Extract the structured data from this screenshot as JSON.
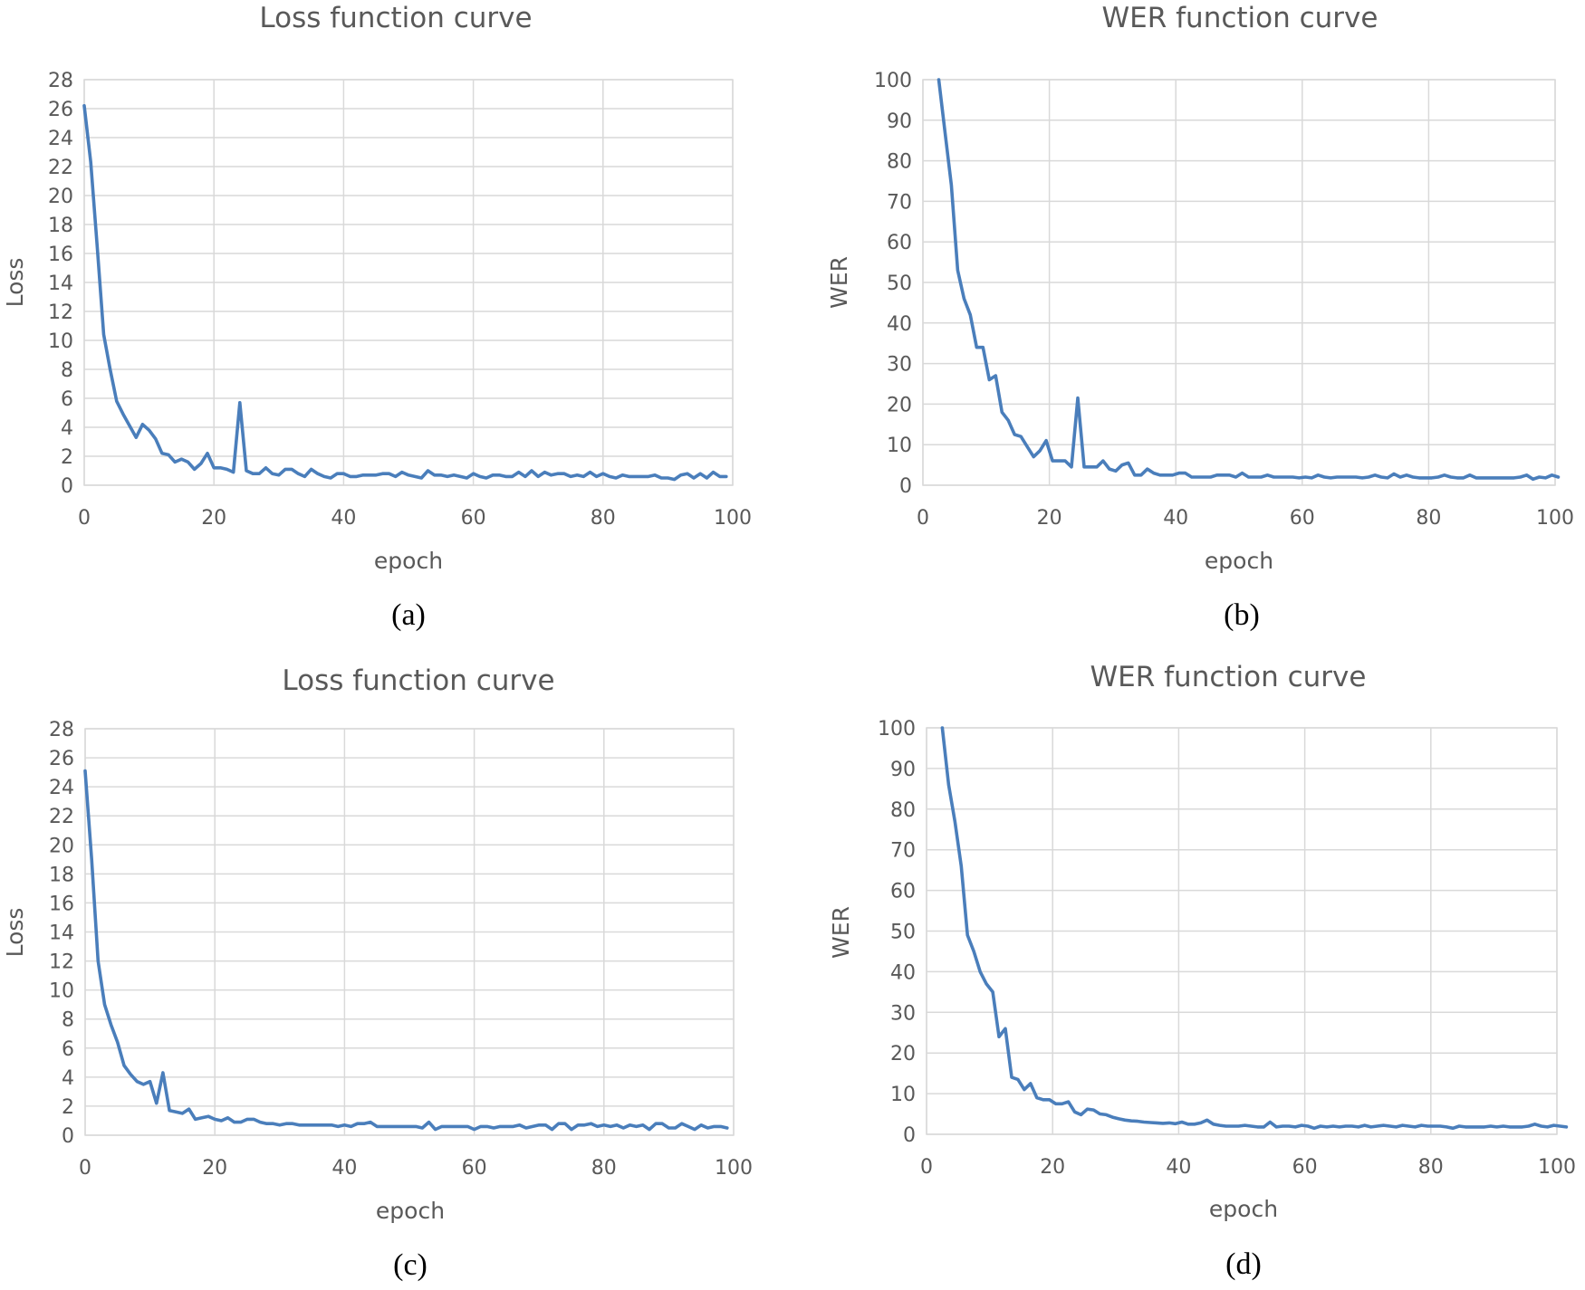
{
  "figure": {
    "background": "#ffffff",
    "series_color": "#4a7ebb"
  },
  "chart_data": [
    {
      "id": "a",
      "type": "line",
      "title": "Loss function curve",
      "xlabel": "epoch",
      "ylabel": "Loss",
      "caption": "(a)",
      "xlim": [
        0,
        100
      ],
      "ylim": [
        0,
        28
      ],
      "xticks": [
        0,
        20,
        40,
        60,
        80,
        100
      ],
      "yticks": [
        0,
        2,
        4,
        6,
        8,
        10,
        12,
        14,
        16,
        18,
        20,
        22,
        24,
        26,
        28
      ],
      "grid": true,
      "series": [
        {
          "name": "Loss",
          "x_start": 0,
          "x_step": 1,
          "values": [
            26.2,
            22.3,
            16.5,
            10.4,
            8.0,
            5.8,
            4.9,
            4.1,
            3.3,
            4.2,
            3.8,
            3.2,
            2.2,
            2.1,
            1.6,
            1.8,
            1.6,
            1.1,
            1.5,
            2.2,
            1.2,
            1.2,
            1.1,
            0.9,
            5.7,
            1.0,
            0.8,
            0.8,
            1.2,
            0.8,
            0.7,
            1.1,
            1.1,
            0.8,
            0.6,
            1.1,
            0.8,
            0.6,
            0.5,
            0.8,
            0.8,
            0.6,
            0.6,
            0.7,
            0.7,
            0.7,
            0.8,
            0.8,
            0.6,
            0.9,
            0.7,
            0.6,
            0.5,
            1.0,
            0.7,
            0.7,
            0.6,
            0.7,
            0.6,
            0.5,
            0.8,
            0.6,
            0.5,
            0.7,
            0.7,
            0.6,
            0.6,
            0.9,
            0.6,
            1.0,
            0.6,
            0.9,
            0.7,
            0.8,
            0.8,
            0.6,
            0.7,
            0.6,
            0.9,
            0.6,
            0.8,
            0.6,
            0.5,
            0.7,
            0.6,
            0.6,
            0.6,
            0.6,
            0.7,
            0.5,
            0.5,
            0.4,
            0.7,
            0.8,
            0.5,
            0.8,
            0.5,
            0.9,
            0.6,
            0.6
          ]
        }
      ]
    },
    {
      "id": "b",
      "type": "line",
      "title": "WER function curve",
      "xlabel": "epoch",
      "ylabel": "WER",
      "caption": "(b)",
      "xlim": [
        0,
        100
      ],
      "ylim": [
        0,
        100
      ],
      "xticks": [
        0,
        20,
        40,
        60,
        80,
        100
      ],
      "yticks": [
        0,
        10,
        20,
        30,
        40,
        50,
        60,
        70,
        80,
        90,
        100
      ],
      "grid": true,
      "series": [
        {
          "name": "WER",
          "x_start": 2.5,
          "x_step": 1,
          "values": [
            100,
            87,
            74,
            53,
            46,
            42,
            34,
            34,
            26,
            27,
            18,
            16,
            12.5,
            12,
            9.5,
            7,
            8.5,
            11,
            6,
            6,
            6,
            4.5,
            21.5,
            4.5,
            4.5,
            4.5,
            6,
            4,
            3.5,
            5,
            5.5,
            2.5,
            2.5,
            4,
            3,
            2.5,
            2.5,
            2.5,
            3,
            3,
            2,
            2,
            2,
            2,
            2.5,
            2.5,
            2.5,
            2,
            3,
            2,
            2,
            2,
            2.5,
            2,
            2,
            2,
            2,
            1.8,
            2,
            1.8,
            2.5,
            2,
            1.8,
            2,
            2,
            2,
            2,
            1.8,
            2,
            2.5,
            2,
            1.8,
            2.8,
            2,
            2.5,
            2,
            1.8,
            1.8,
            1.8,
            2,
            2.5,
            2,
            1.8,
            1.8,
            2.5,
            1.8,
            1.8,
            1.8,
            1.8,
            1.8,
            1.8,
            1.8,
            2,
            2.5,
            1.5,
            2,
            1.8,
            2.5,
            2
          ]
        }
      ]
    },
    {
      "id": "c",
      "type": "line",
      "title": "Loss function curve",
      "xlabel": "epoch",
      "ylabel": "Loss",
      "caption": "(c)",
      "xlim": [
        0,
        100
      ],
      "ylim": [
        0,
        28
      ],
      "xticks": [
        0,
        20,
        40,
        60,
        80,
        100
      ],
      "yticks": [
        0,
        2,
        4,
        6,
        8,
        10,
        12,
        14,
        16,
        18,
        20,
        22,
        24,
        26,
        28
      ],
      "grid": true,
      "series": [
        {
          "name": "Loss",
          "x_start": 0,
          "x_step": 1,
          "values": [
            25.1,
            19.0,
            12.0,
            9.0,
            7.6,
            6.4,
            4.8,
            4.2,
            3.7,
            3.5,
            3.7,
            2.2,
            4.3,
            1.7,
            1.6,
            1.5,
            1.8,
            1.1,
            1.2,
            1.3,
            1.1,
            1.0,
            1.2,
            0.9,
            0.9,
            1.1,
            1.1,
            0.9,
            0.8,
            0.8,
            0.7,
            0.8,
            0.8,
            0.7,
            0.7,
            0.7,
            0.7,
            0.7,
            0.7,
            0.6,
            0.7,
            0.6,
            0.8,
            0.8,
            0.9,
            0.6,
            0.6,
            0.6,
            0.6,
            0.6,
            0.6,
            0.6,
            0.5,
            0.9,
            0.4,
            0.6,
            0.6,
            0.6,
            0.6,
            0.6,
            0.4,
            0.6,
            0.6,
            0.5,
            0.6,
            0.6,
            0.6,
            0.7,
            0.5,
            0.6,
            0.7,
            0.7,
            0.4,
            0.8,
            0.8,
            0.4,
            0.7,
            0.7,
            0.8,
            0.6,
            0.7,
            0.6,
            0.7,
            0.5,
            0.7,
            0.6,
            0.7,
            0.4,
            0.8,
            0.8,
            0.5,
            0.5,
            0.8,
            0.6,
            0.4,
            0.7,
            0.5,
            0.6,
            0.6,
            0.5
          ]
        }
      ]
    },
    {
      "id": "d",
      "type": "line",
      "title": "WER function curve",
      "xlabel": "epoch",
      "ylabel": "WER",
      "caption": "(d)",
      "xlim": [
        0,
        100
      ],
      "ylim": [
        0,
        100
      ],
      "xticks": [
        0,
        20,
        40,
        60,
        80,
        100
      ],
      "yticks": [
        0,
        10,
        20,
        30,
        40,
        50,
        60,
        70,
        80,
        90,
        100
      ],
      "grid": true,
      "series": [
        {
          "name": "WER",
          "x_start": 2.5,
          "x_step": 1,
          "values": [
            100,
            86,
            77,
            66,
            49,
            45,
            40,
            37,
            35,
            24,
            26,
            14,
            13.5,
            11,
            12.5,
            9,
            8.5,
            8.5,
            7.5,
            7.5,
            8,
            5.5,
            4.8,
            6.2,
            6,
            5,
            4.8,
            4.2,
            3.8,
            3.5,
            3.3,
            3.2,
            3,
            2.9,
            2.8,
            2.7,
            2.8,
            2.6,
            3,
            2.5,
            2.5,
            2.8,
            3.5,
            2.5,
            2.2,
            2,
            2,
            2,
            2.2,
            2,
            1.8,
            1.8,
            3,
            1.8,
            2,
            2,
            1.8,
            2.2,
            2,
            1.5,
            2,
            1.8,
            2,
            1.8,
            2,
            2,
            1.8,
            2.2,
            1.8,
            2,
            2.2,
            2,
            1.8,
            2.2,
            2,
            1.8,
            2.2,
            2,
            2,
            2,
            1.8,
            1.5,
            2,
            1.8,
            1.8,
            1.8,
            1.8,
            2,
            1.8,
            2,
            1.8,
            1.8,
            1.8,
            2,
            2.5,
            2,
            1.8,
            2.2,
            2,
            1.8
          ]
        }
      ]
    }
  ]
}
